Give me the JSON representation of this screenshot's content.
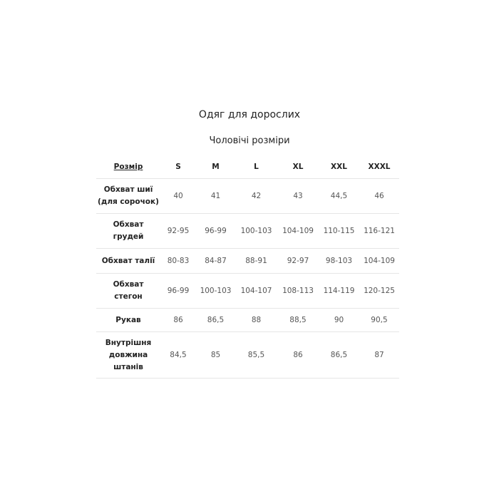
{
  "title": "Одяг для дорослих",
  "subtitle": "Чоловічі розміри",
  "table": {
    "header_label": "Розмір",
    "sizes": [
      "S",
      "M",
      "L",
      "XL",
      "XXL",
      "XXXL"
    ],
    "rows": [
      {
        "label_lines": [
          "Обхват шиї",
          "(для сорочок)"
        ],
        "values": [
          "40",
          "41",
          "42",
          "43",
          "44,5",
          "46"
        ]
      },
      {
        "label_lines": [
          "Обхват",
          "грудей"
        ],
        "values": [
          "92-95",
          "96-99",
          "100-103",
          "104-109",
          "110-115",
          "116-121"
        ]
      },
      {
        "label_lines": [
          "Обхват талії"
        ],
        "values": [
          "80-83",
          "84-87",
          "88-91",
          "92-97",
          "98-103",
          "104-109"
        ]
      },
      {
        "label_lines": [
          "Обхват",
          "стегон"
        ],
        "values": [
          "96-99",
          "100-103",
          "104-107",
          "108-113",
          "114-119",
          "120-125"
        ]
      },
      {
        "label_lines": [
          "Рукав"
        ],
        "values": [
          "86",
          "86,5",
          "88",
          "88,5",
          "90",
          "90,5"
        ]
      },
      {
        "label_lines": [
          "Внутрішня",
          "довжина",
          "штанів"
        ],
        "values": [
          "84,5",
          "85",
          "85,5",
          "86",
          "86,5",
          "87"
        ]
      }
    ]
  }
}
